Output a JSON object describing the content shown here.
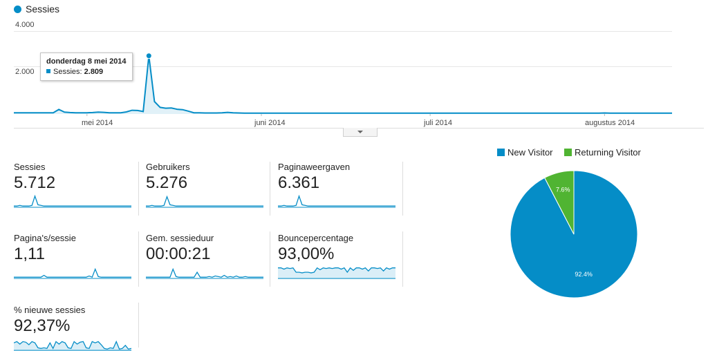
{
  "colors": {
    "primary": "#058dc7",
    "secondary": "#50b432",
    "grid": "#e6e6e6"
  },
  "chart_data": [
    {
      "type": "area",
      "legend": "Sessies",
      "legend_placement": "top-left",
      "y_tick_labels": [
        "2.000",
        "4.000"
      ],
      "y_ticks": [
        2000,
        4000
      ],
      "ylim": [
        0,
        4000
      ],
      "x_tick_labels": [
        "mei 2014",
        "juni 2014",
        "juli 2014",
        "augustus 2014"
      ],
      "x_tick_index": [
        13,
        44,
        74,
        105
      ],
      "series": [
        {
          "name": "Sessies",
          "values": [
            60,
            60,
            60,
            60,
            60,
            60,
            60,
            60,
            220,
            90,
            70,
            60,
            60,
            60,
            70,
            90,
            80,
            60,
            60,
            60,
            100,
            180,
            170,
            120,
            2809,
            600,
            320,
            280,
            290,
            230,
            210,
            140,
            60,
            60,
            50,
            50,
            50,
            60,
            80,
            60,
            50,
            40,
            40,
            40,
            40,
            40,
            40,
            40,
            40,
            40,
            40,
            40,
            40,
            40,
            40,
            40,
            40,
            40,
            40,
            40,
            40,
            40,
            40,
            40,
            40,
            40,
            40,
            40,
            40,
            40,
            40,
            40,
            40,
            40,
            40,
            40,
            40,
            40,
            40,
            40,
            40,
            40,
            40,
            40,
            40,
            40,
            40,
            40,
            40,
            40,
            40,
            40,
            40,
            40,
            40,
            40,
            40,
            40,
            40,
            40,
            40,
            40,
            40,
            40,
            40,
            50,
            40,
            40,
            40,
            40,
            40,
            40,
            40,
            40,
            40,
            40,
            40,
            40
          ]
        }
      ],
      "tooltip": {
        "title": "donderdag 8 mei 2014",
        "label": "Sessies:",
        "value": "2.809",
        "point_index": 24
      }
    },
    {
      "type": "pie",
      "legend": [
        "New Visitor",
        "Returning Visitor"
      ],
      "legend_placement": "top",
      "values": [
        92.4,
        7.6
      ],
      "labels": [
        "92.4%",
        "7.6%"
      ]
    }
  ],
  "metrics": [
    {
      "label": "Sessies",
      "value": "5.712",
      "spark": [
        2,
        2,
        3,
        2,
        2,
        2,
        3,
        18,
        4,
        3,
        2,
        2,
        2,
        2,
        2,
        2,
        2,
        2,
        2,
        2,
        2,
        2,
        2,
        2,
        2,
        2,
        2,
        2,
        2,
        2,
        2,
        2,
        2,
        2,
        2,
        2,
        2,
        2,
        2,
        2
      ],
      "area": false
    },
    {
      "label": "Gebruikers",
      "value": "5.276",
      "spark": [
        2,
        2,
        3,
        2,
        2,
        2,
        3,
        17,
        4,
        3,
        2,
        2,
        2,
        2,
        2,
        2,
        2,
        2,
        2,
        2,
        2,
        2,
        2,
        2,
        2,
        2,
        2,
        2,
        2,
        2,
        2,
        2,
        2,
        2,
        2,
        2,
        2,
        2,
        2,
        2
      ],
      "area": false
    },
    {
      "label": "Paginaweergaven",
      "value": "6.361",
      "spark": [
        2,
        2,
        3,
        2,
        2,
        2,
        3,
        18,
        4,
        3,
        2,
        2,
        2,
        2,
        2,
        2,
        2,
        2,
        2,
        2,
        2,
        2,
        2,
        2,
        2,
        2,
        2,
        2,
        2,
        2,
        2,
        2,
        2,
        2,
        2,
        2,
        2,
        2,
        2,
        2
      ],
      "area": false
    },
    {
      "label": "Pagina's/sessie",
      "value": "1,11",
      "spark": [
        2,
        2,
        2,
        2,
        2,
        2,
        2,
        2,
        2,
        2,
        5,
        2,
        2,
        2,
        2,
        2,
        2,
        2,
        2,
        2,
        2,
        2,
        2,
        2,
        2,
        4,
        2,
        15,
        3,
        2,
        2,
        2,
        2,
        2,
        2,
        2,
        2,
        2,
        2,
        2
      ],
      "area": false
    },
    {
      "label": "Gem. sessieduur",
      "value": "00:00:21",
      "spark": [
        2,
        2,
        2,
        2,
        2,
        2,
        2,
        2,
        2,
        15,
        3,
        2,
        2,
        2,
        2,
        2,
        2,
        10,
        2,
        2,
        2,
        3,
        2,
        4,
        3,
        2,
        5,
        2,
        3,
        2,
        4,
        2,
        2,
        3,
        2,
        2,
        2,
        2,
        2,
        2
      ],
      "area": false
    },
    {
      "label": "Bouncepercentage",
      "value": "93,00%",
      "spark": [
        17,
        17,
        15,
        17,
        16,
        17,
        10,
        10,
        9,
        10,
        10,
        9,
        10,
        17,
        14,
        17,
        16,
        17,
        16,
        17,
        17,
        15,
        17,
        10,
        17,
        13,
        17,
        17,
        15,
        17,
        12,
        17,
        17,
        16,
        17,
        12,
        17,
        15,
        17,
        17
      ],
      "area": true
    },
    {
      "label": "% nieuwe sessies",
      "value": "92,37%",
      "spark": [
        12,
        14,
        10,
        14,
        13,
        9,
        14,
        12,
        4,
        3,
        4,
        3,
        12,
        3,
        14,
        10,
        14,
        12,
        4,
        3,
        14,
        10,
        13,
        14,
        4,
        3,
        14,
        12,
        14,
        9,
        3,
        2,
        4,
        3,
        14,
        2,
        3,
        8,
        2,
        3
      ],
      "area": true
    }
  ]
}
